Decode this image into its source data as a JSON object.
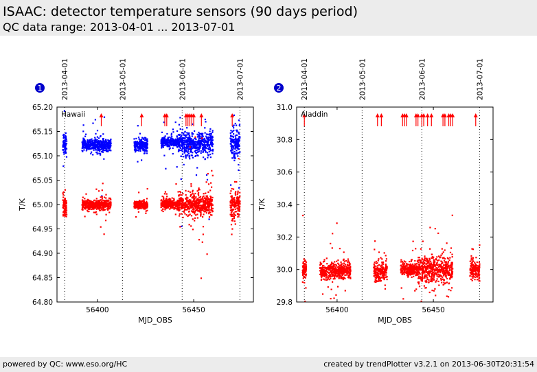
{
  "header": {
    "title": "ISAAC: detector temperature sensors (90 days period)",
    "subtitle": "QC data range: 2013-04-01 ... 2013-07-01"
  },
  "footer": {
    "left": "powered by QC: www.eso.org/HC",
    "right": "created by trendPlotter v3.2.1 on 2013-06-30T20:31:54"
  },
  "colors": {
    "series_blue": "#0000ff",
    "series_red": "#ff0000",
    "background": "#ececec"
  },
  "chart_data": [
    {
      "type": "scatter",
      "badge": "1",
      "panel_label": "Hawaii",
      "xlabel": "MJD_OBS",
      "ylabel": "T/K",
      "xlim": [
        56379,
        56481
      ],
      "ylim": [
        64.8,
        65.2
      ],
      "xticks": [
        56400,
        56450
      ],
      "yticks": [
        64.8,
        64.85,
        64.9,
        64.95,
        65.0,
        65.05,
        65.1,
        65.15,
        65.2
      ],
      "ytick_decimals": 2,
      "date_markers": [
        {
          "x": 56383,
          "label": "2013-04-01"
        },
        {
          "x": 56413,
          "label": "2013-05-01"
        },
        {
          "x": 56444,
          "label": "2013-06-01"
        },
        {
          "x": 56474,
          "label": "2013-07-01"
        }
      ],
      "out_of_range_arrows": [
        56402,
        56423,
        56435,
        56436,
        56446,
        56447,
        56448,
        56449,
        56450,
        56454,
        56470
      ],
      "series": [
        {
          "color": "blue",
          "clusters": [
            {
              "x_start": 56382,
              "x_end": 56384,
              "center": 65.125,
              "spread": 0.012
            },
            {
              "x_start": 56392,
              "x_end": 56407,
              "center": 65.122,
              "spread": 0.006
            },
            {
              "x_start": 56419,
              "x_end": 56426,
              "center": 65.122,
              "spread": 0.006
            },
            {
              "x_start": 56433,
              "x_end": 56442,
              "center": 65.128,
              "spread": 0.005
            },
            {
              "x_start": 56442,
              "x_end": 56460,
              "center": 65.125,
              "spread": 0.012
            },
            {
              "x_start": 56469,
              "x_end": 56474,
              "center": 65.125,
              "spread": 0.015
            }
          ]
        },
        {
          "color": "red",
          "clusters": [
            {
              "x_start": 56382,
              "x_end": 56384,
              "center": 64.995,
              "spread": 0.012
            },
            {
              "x_start": 56392,
              "x_end": 56407,
              "center": 65.0,
              "spread": 0.005
            },
            {
              "x_start": 56419,
              "x_end": 56426,
              "center": 64.999,
              "spread": 0.004
            },
            {
              "x_start": 56433,
              "x_end": 56442,
              "center": 65.001,
              "spread": 0.005
            },
            {
              "x_start": 56442,
              "x_end": 56460,
              "center": 65.0,
              "spread": 0.01
            },
            {
              "x_start": 56469,
              "x_end": 56474,
              "center": 64.998,
              "spread": 0.015
            }
          ]
        }
      ]
    },
    {
      "type": "scatter",
      "badge": "2",
      "panel_label": "Aladdin",
      "xlabel": "MJD_OBS",
      "ylabel": "T/K",
      "xlim": [
        56379,
        56481
      ],
      "ylim": [
        29.8,
        31.0
      ],
      "xticks": [
        56400,
        56450
      ],
      "yticks": [
        29.8,
        30.0,
        30.2,
        30.4,
        30.6,
        30.8,
        31.0
      ],
      "ytick_decimals": 1,
      "date_markers": [
        {
          "x": 56383,
          "label": "2013-04-01"
        },
        {
          "x": 56413,
          "label": "2013-05-01"
        },
        {
          "x": 56444,
          "label": "2013-06-01"
        },
        {
          "x": 56474,
          "label": "2013-07-01"
        }
      ],
      "out_of_range_arrows": [
        56383,
        56421,
        56423,
        56434,
        56435,
        56436,
        56441,
        56442,
        56444,
        56445,
        56447,
        56449,
        56455,
        56456,
        56458,
        56459,
        56460,
        56472
      ],
      "series": [
        {
          "color": "red",
          "clusters": [
            {
              "x_start": 56382,
              "x_end": 56384,
              "center": 30.0,
              "spread": 0.03
            },
            {
              "x_start": 56391,
              "x_end": 56407,
              "center": 29.99,
              "spread": 0.025
            },
            {
              "x_start": 56419,
              "x_end": 56426,
              "center": 29.99,
              "spread": 0.03
            },
            {
              "x_start": 56433,
              "x_end": 56442,
              "center": 30.0,
              "spread": 0.02
            },
            {
              "x_start": 56442,
              "x_end": 56460,
              "center": 30.0,
              "spread": 0.04
            },
            {
              "x_start": 56469,
              "x_end": 56474,
              "center": 30.0,
              "spread": 0.03
            }
          ]
        }
      ]
    }
  ]
}
